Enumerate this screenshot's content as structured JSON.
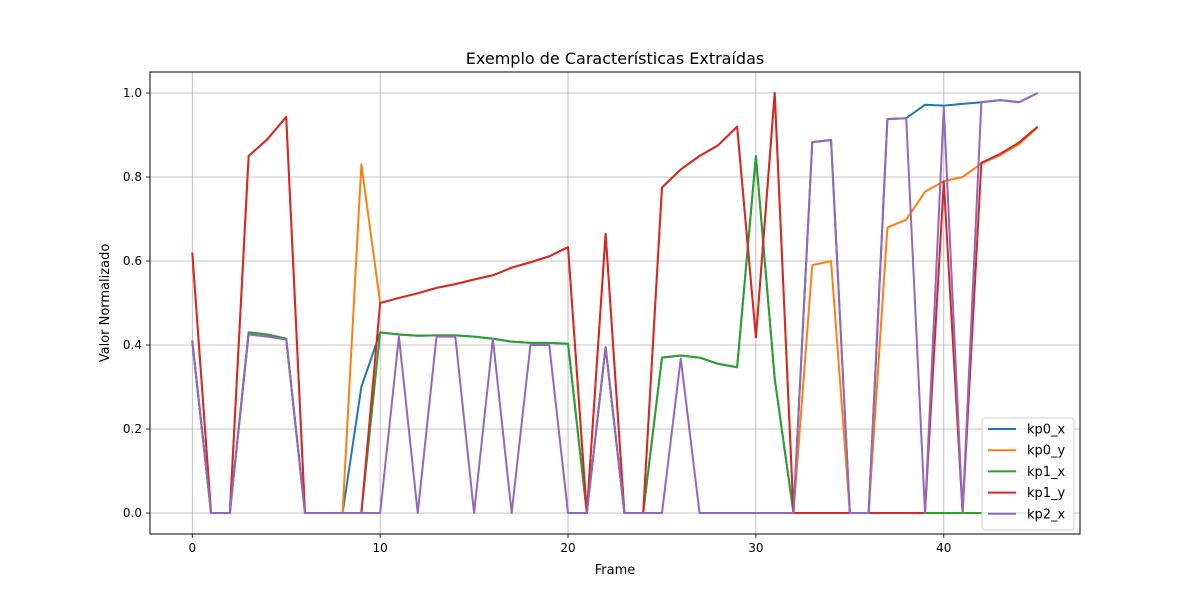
{
  "chart_data": {
    "type": "line",
    "title": "Exemplo de Características Extraídas",
    "xlabel": "Frame",
    "ylabel": "Valor Normalizado",
    "xlim": [
      -2.25,
      47.25
    ],
    "ylim": [
      -0.05,
      1.05
    ],
    "xticks": [
      0,
      10,
      20,
      30,
      40
    ],
    "yticks": [
      0.0,
      0.2,
      0.4,
      0.6,
      0.8,
      1.0
    ],
    "xtick_labels": [
      "0",
      "10",
      "20",
      "30",
      "40"
    ],
    "ytick_labels": [
      "0.0",
      "0.2",
      "0.4",
      "0.6",
      "0.8",
      "1.0"
    ],
    "grid": true,
    "legend_position": "lower-right",
    "x": [
      0,
      1,
      2,
      3,
      4,
      5,
      6,
      7,
      8,
      9,
      10,
      11,
      12,
      13,
      14,
      15,
      16,
      17,
      18,
      19,
      20,
      21,
      22,
      23,
      24,
      25,
      26,
      27,
      28,
      29,
      30,
      31,
      32,
      33,
      34,
      35,
      36,
      37,
      38,
      39,
      40,
      41,
      42,
      43,
      44,
      45
    ],
    "series": [
      {
        "name": "kp0_x",
        "color": "#1f77b4",
        "values": [
          0.41,
          0,
          0,
          0.43,
          0.425,
          0.415,
          0,
          0,
          0,
          0.3,
          0.43,
          0.425,
          0.422,
          0.423,
          0.423,
          0.42,
          0.415,
          0.408,
          0.405,
          0.405,
          0.403,
          0,
          0.395,
          0,
          0,
          0.37,
          0.375,
          0.37,
          0.355,
          0.347,
          0.85,
          0.32,
          0,
          0.883,
          0.888,
          0,
          0,
          0.938,
          0.94,
          0.972,
          0.97,
          0.974,
          0.978,
          0.983,
          0.978,
          1.0
        ]
      },
      {
        "name": "kp0_y",
        "color": "#ff7f0e",
        "values": [
          0.62,
          0,
          0,
          0.85,
          0.89,
          0.943,
          0,
          0,
          0,
          0.83,
          0.5,
          0.512,
          0.523,
          0.536,
          0.545,
          0.556,
          0.566,
          0.584,
          0.597,
          0.611,
          0.633,
          0,
          0.665,
          0,
          0,
          0.775,
          0.818,
          0.85,
          0.876,
          0.92,
          0.418,
          1.0,
          0,
          0.59,
          0.6,
          0,
          0,
          0.68,
          0.698,
          0.765,
          0.79,
          0.8,
          0.832,
          0.852,
          0.878,
          0.918
        ]
      },
      {
        "name": "kp1_x",
        "color": "#2ca02c",
        "values": [
          0.41,
          0,
          0,
          0.43,
          0.425,
          0.415,
          0,
          0,
          0,
          0,
          0.43,
          0.425,
          0.422,
          0.423,
          0.423,
          0.42,
          0.415,
          0.408,
          0.405,
          0.405,
          0.403,
          0,
          0.395,
          0,
          0,
          0.37,
          0.375,
          0.37,
          0.355,
          0.347,
          0.85,
          0.32,
          0,
          0,
          0,
          0,
          0,
          0,
          0,
          0,
          0,
          0,
          0,
          0,
          0,
          0
        ]
      },
      {
        "name": "kp1_y",
        "color": "#d62728",
        "values": [
          0.62,
          0,
          0,
          0.85,
          0.89,
          0.943,
          0,
          0,
          0,
          0,
          0.5,
          0.512,
          0.523,
          0.536,
          0.545,
          0.556,
          0.566,
          0.584,
          0.597,
          0.611,
          0.633,
          0,
          0.665,
          0,
          0,
          0.775,
          0.818,
          0.85,
          0.876,
          0.92,
          0.418,
          1.0,
          0,
          0,
          0,
          0,
          0,
          0,
          0,
          0,
          0.79,
          0,
          0.834,
          0.855,
          0.882,
          0.92
        ]
      },
      {
        "name": "kp2_x",
        "color": "#9467bd",
        "values": [
          0.41,
          0,
          0,
          0.425,
          0.42,
          0.413,
          0,
          0,
          0,
          0,
          0,
          0.42,
          0,
          0.42,
          0.42,
          0,
          0.415,
          0,
          0.4,
          0.4,
          0,
          0,
          0.395,
          0,
          0,
          0,
          0.368,
          0,
          0,
          0,
          0,
          0,
          0,
          0.883,
          0.888,
          0,
          0,
          0.938,
          0.94,
          0,
          0.965,
          0,
          0.978,
          0.983,
          0.978,
          1.0
        ]
      }
    ]
  }
}
